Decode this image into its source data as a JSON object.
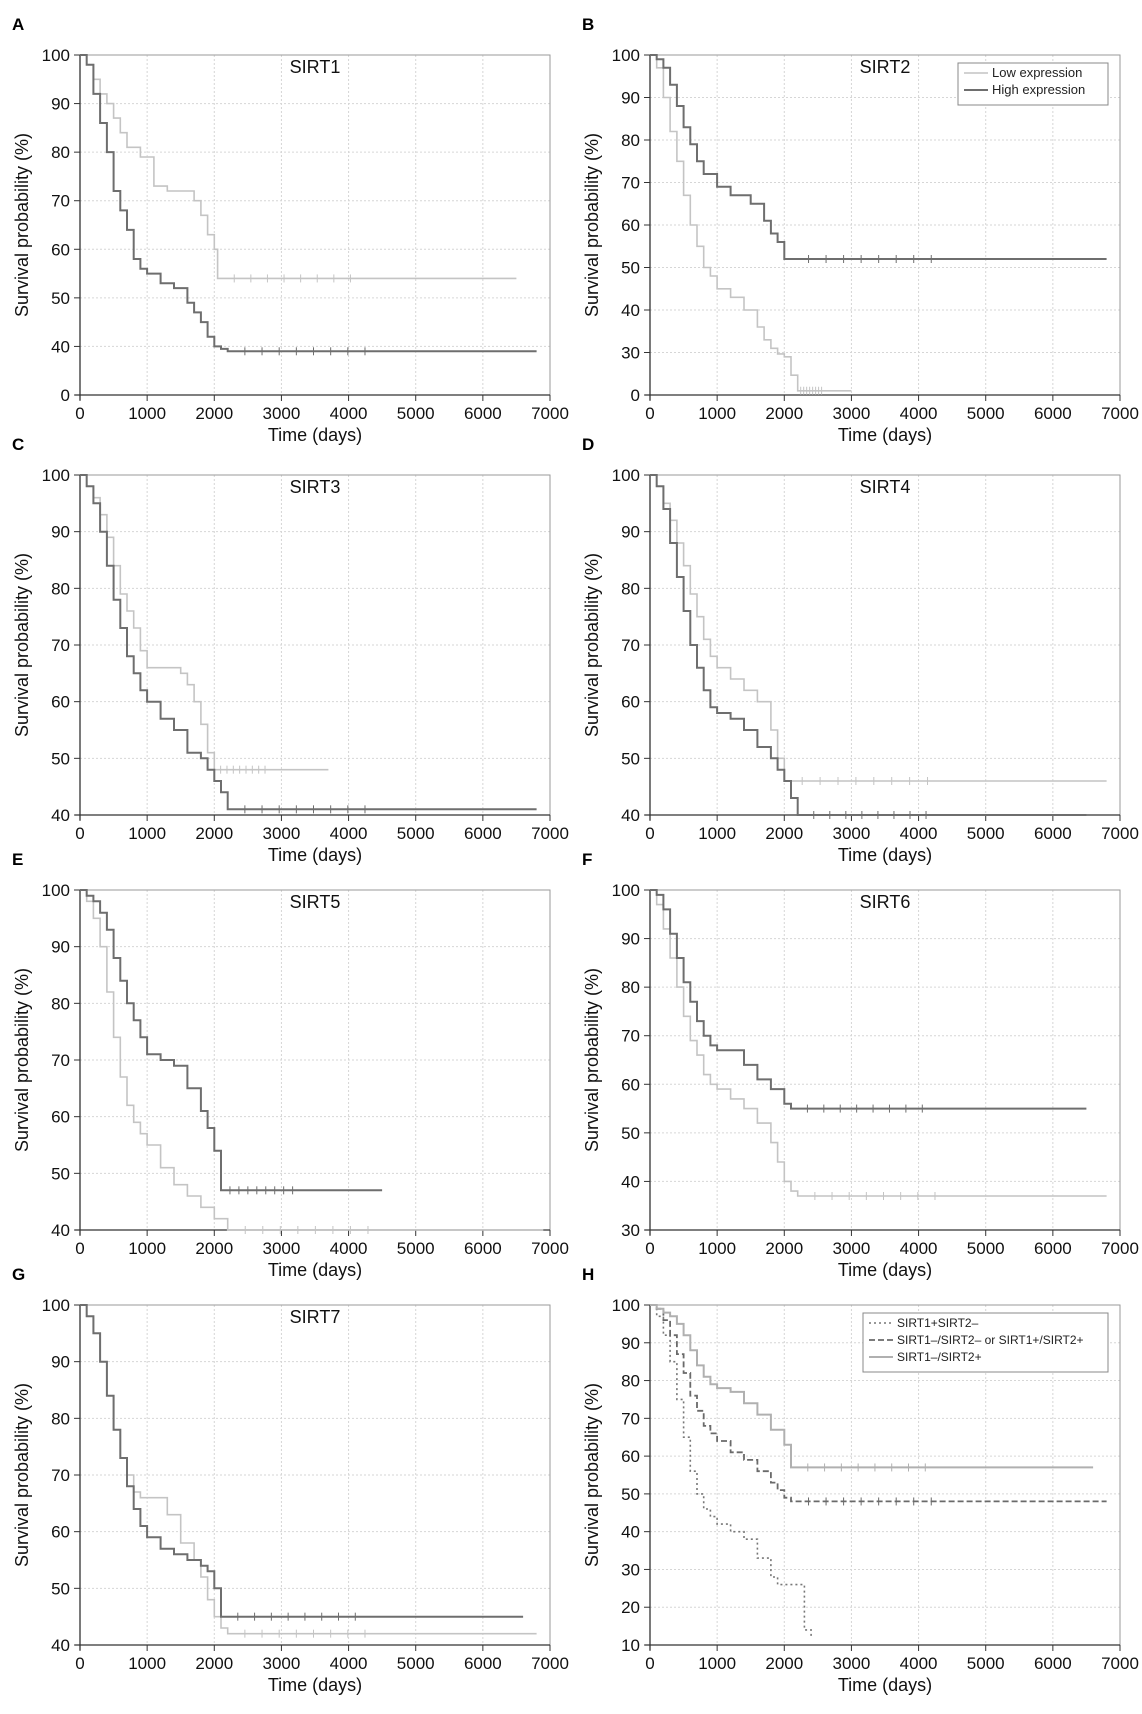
{
  "chart_data": [
    {
      "panel": "A",
      "type": "line",
      "title": "SIRT1",
      "xlabel": "Time (days)",
      "ylabel": "Survival probability (%)",
      "xticks": [
        0,
        1000,
        2000,
        3000,
        4000,
        5000,
        6000,
        7000
      ],
      "yticks": [
        0,
        40,
        50,
        60,
        70,
        80,
        90,
        100
      ],
      "legend": [],
      "series": [
        {
          "style": "low",
          "x": [
            0,
            100,
            200,
            300,
            400,
            500,
            600,
            700,
            900,
            1100,
            1300,
            1500,
            1700,
            1800,
            1900,
            2000,
            2050,
            6500
          ],
          "y": [
            100,
            98,
            95,
            92,
            90,
            87,
            84,
            81,
            79,
            73,
            72,
            72,
            70,
            67,
            63,
            60,
            54,
            54
          ]
        },
        {
          "style": "high",
          "x": [
            0,
            100,
            200,
            300,
            400,
            500,
            600,
            700,
            800,
            900,
            1000,
            1200,
            1400,
            1600,
            1700,
            1800,
            1900,
            2000,
            2100,
            2200,
            6800
          ],
          "y": [
            100,
            98,
            92,
            86,
            80,
            72,
            68,
            64,
            58,
            56,
            55,
            53,
            52,
            49,
            47,
            45,
            42,
            40,
            38,
            36,
            36
          ]
        }
      ]
    },
    {
      "panel": "B",
      "type": "line",
      "title": "SIRT2",
      "xlabel": "Time (days)",
      "ylabel": "Survival probability (%)",
      "xticks": [
        0,
        1000,
        2000,
        3000,
        4000,
        5000,
        6000,
        7000
      ],
      "yticks": [
        0,
        30,
        40,
        50,
        60,
        70,
        80,
        90,
        100
      ],
      "legend": [
        "Low expression",
        "High expression"
      ],
      "series": [
        {
          "style": "low",
          "x": [
            0,
            100,
            200,
            300,
            400,
            500,
            600,
            700,
            800,
            900,
            1000,
            1200,
            1400,
            1600,
            1700,
            1800,
            1900,
            2000,
            2100,
            2200,
            3000
          ],
          "y": [
            100,
            97,
            90,
            82,
            75,
            67,
            60,
            55,
            50,
            48,
            45,
            43,
            40,
            36,
            33,
            31,
            29,
            27,
            14,
            3,
            3
          ]
        },
        {
          "style": "high",
          "x": [
            0,
            100,
            200,
            300,
            400,
            500,
            600,
            700,
            800,
            1000,
            1200,
            1500,
            1700,
            1800,
            1900,
            2000,
            2100,
            6800
          ],
          "y": [
            100,
            99,
            97,
            93,
            88,
            83,
            79,
            75,
            72,
            69,
            67,
            65,
            61,
            58,
            56,
            52,
            52,
            52
          ]
        }
      ]
    },
    {
      "panel": "C",
      "type": "line",
      "title": "SIRT3",
      "xlabel": "Time (days)",
      "ylabel": "Survival probability (%)",
      "xticks": [
        0,
        1000,
        2000,
        3000,
        4000,
        5000,
        6000,
        7000
      ],
      "yticks": [
        40,
        50,
        60,
        70,
        80,
        90,
        100
      ],
      "legend": [],
      "series": [
        {
          "style": "low",
          "x": [
            0,
            100,
            200,
            300,
            400,
            500,
            600,
            700,
            800,
            900,
            1000,
            1400,
            1500,
            1600,
            1700,
            1800,
            1900,
            2000,
            3700
          ],
          "y": [
            100,
            98,
            96,
            93,
            89,
            84,
            79,
            76,
            73,
            69,
            66,
            66,
            65,
            63,
            60,
            56,
            51,
            48,
            48
          ]
        },
        {
          "style": "high",
          "x": [
            0,
            100,
            200,
            300,
            400,
            500,
            600,
            700,
            800,
            900,
            1000,
            1200,
            1400,
            1600,
            1800,
            1900,
            2000,
            2100,
            2200,
            6800
          ],
          "y": [
            100,
            98,
            95,
            90,
            84,
            78,
            73,
            68,
            65,
            62,
            60,
            57,
            55,
            51,
            50,
            48,
            46,
            44,
            41,
            41
          ]
        }
      ]
    },
    {
      "panel": "D",
      "type": "line",
      "title": "SIRT4",
      "xlabel": "Time (days)",
      "ylabel": "Survival probability (%)",
      "xticks": [
        0,
        1000,
        2000,
        3000,
        4000,
        5000,
        6000,
        7000
      ],
      "yticks": [
        40,
        50,
        60,
        70,
        80,
        90,
        100
      ],
      "legend": [],
      "series": [
        {
          "style": "low",
          "x": [
            0,
            100,
            200,
            300,
            400,
            500,
            600,
            700,
            800,
            900,
            1000,
            1200,
            1400,
            1600,
            1800,
            1900,
            2000,
            6800
          ],
          "y": [
            100,
            98,
            95,
            92,
            88,
            84,
            79,
            75,
            71,
            68,
            66,
            64,
            62,
            60,
            55,
            50,
            46,
            46
          ]
        },
        {
          "style": "high",
          "x": [
            0,
            100,
            200,
            300,
            400,
            500,
            600,
            700,
            800,
            900,
            1000,
            1200,
            1400,
            1600,
            1800,
            1900,
            2000,
            2100,
            2200,
            6500
          ],
          "y": [
            100,
            98,
            94,
            88,
            82,
            76,
            70,
            66,
            62,
            59,
            58,
            57,
            55,
            52,
            50,
            48,
            46,
            43,
            40,
            40
          ]
        }
      ]
    },
    {
      "panel": "E",
      "type": "line",
      "title": "SIRT5",
      "xlabel": "Time (days)",
      "ylabel": "Survival probability (%)",
      "xticks": [
        0,
        1000,
        2000,
        3000,
        4000,
        5000,
        6000,
        7000
      ],
      "yticks": [
        40,
        50,
        60,
        70,
        80,
        90,
        100
      ],
      "legend": [],
      "series": [
        {
          "style": "low",
          "x": [
            0,
            100,
            200,
            300,
            400,
            500,
            600,
            700,
            800,
            900,
            1000,
            1200,
            1400,
            1600,
            1800,
            2000,
            2200,
            6900
          ],
          "y": [
            100,
            98,
            95,
            90,
            82,
            74,
            67,
            62,
            59,
            57,
            55,
            51,
            48,
            46,
            44,
            42,
            40,
            40
          ]
        },
        {
          "style": "high",
          "x": [
            0,
            100,
            200,
            300,
            400,
            500,
            600,
            700,
            800,
            900,
            1000,
            1200,
            1400,
            1600,
            1800,
            1900,
            2000,
            2100,
            4500
          ],
          "y": [
            100,
            99,
            98,
            96,
            93,
            88,
            84,
            80,
            77,
            74,
            71,
            70,
            69,
            65,
            61,
            58,
            54,
            47,
            47
          ]
        }
      ]
    },
    {
      "panel": "F",
      "type": "line",
      "title": "SIRT6",
      "xlabel": "Time (days)",
      "ylabel": "Survival probability (%)",
      "xticks": [
        0,
        1000,
        2000,
        3000,
        4000,
        5000,
        6000,
        7000
      ],
      "yticks": [
        30,
        40,
        50,
        60,
        70,
        80,
        90,
        100
      ],
      "legend": [],
      "series": [
        {
          "style": "low",
          "x": [
            0,
            100,
            200,
            300,
            400,
            500,
            600,
            700,
            800,
            900,
            1000,
            1200,
            1400,
            1600,
            1800,
            1900,
            2000,
            2100,
            2200,
            6800
          ],
          "y": [
            100,
            97,
            92,
            86,
            80,
            74,
            69,
            66,
            62,
            60,
            59,
            57,
            55,
            52,
            48,
            44,
            40,
            38,
            37,
            37
          ]
        },
        {
          "style": "high",
          "x": [
            0,
            100,
            200,
            300,
            400,
            500,
            600,
            700,
            800,
            900,
            1000,
            1200,
            1400,
            1600,
            1800,
            2000,
            2100,
            6500
          ],
          "y": [
            100,
            99,
            96,
            91,
            86,
            81,
            77,
            73,
            70,
            68,
            67,
            67,
            64,
            61,
            59,
            56,
            55,
            55
          ]
        }
      ]
    },
    {
      "panel": "G",
      "type": "line",
      "title": "SIRT7",
      "xlabel": "Time (days)",
      "ylabel": "Survival probability (%)",
      "xticks": [
        0,
        1000,
        2000,
        3000,
        4000,
        5000,
        6000,
        7000
      ],
      "yticks": [
        40,
        50,
        60,
        70,
        80,
        90,
        100
      ],
      "legend": [],
      "series": [
        {
          "style": "low",
          "x": [
            0,
            100,
            200,
            300,
            400,
            500,
            600,
            700,
            800,
            900,
            1000,
            1300,
            1500,
            1700,
            1800,
            1900,
            2000,
            2100,
            2200,
            6800
          ],
          "y": [
            100,
            98,
            95,
            90,
            84,
            78,
            73,
            70,
            67,
            66,
            66,
            63,
            58,
            55,
            52,
            48,
            45,
            43,
            42,
            42
          ]
        },
        {
          "style": "high",
          "x": [
            0,
            100,
            200,
            300,
            400,
            500,
            600,
            700,
            800,
            900,
            1000,
            1200,
            1400,
            1600,
            1800,
            1900,
            2000,
            2100,
            6600
          ],
          "y": [
            100,
            98,
            95,
            90,
            84,
            78,
            73,
            68,
            64,
            61,
            59,
            57,
            56,
            55,
            54,
            53,
            50,
            45,
            45
          ]
        }
      ]
    },
    {
      "panel": "H",
      "type": "line",
      "title": "",
      "xlabel": "Time (days)",
      "ylabel": "Survival probability (%)",
      "xticks": [
        0,
        1000,
        2000,
        3000,
        4000,
        5000,
        6000,
        7000
      ],
      "yticks": [
        10,
        20,
        30,
        40,
        50,
        60,
        70,
        80,
        90,
        100
      ],
      "legend": [
        "SIRT1+SIRT2–",
        "SIRT1–/SIRT2– or SIRT1+/SIRT2+",
        "SIRT1–/SIRT2+"
      ],
      "series": [
        {
          "style": "dotted",
          "x": [
            0,
            100,
            200,
            300,
            400,
            500,
            600,
            700,
            800,
            900,
            1000,
            1200,
            1400,
            1600,
            1800,
            1900,
            2000,
            2100,
            2200,
            2300,
            2400
          ],
          "y": [
            100,
            97,
            92,
            85,
            75,
            65,
            56,
            50,
            46,
            44,
            42,
            40,
            38,
            33,
            28,
            26,
            26,
            26,
            26,
            14,
            12
          ]
        },
        {
          "style": "dashed",
          "x": [
            0,
            100,
            200,
            300,
            400,
            500,
            600,
            700,
            800,
            900,
            1000,
            1200,
            1400,
            1600,
            1800,
            1900,
            2000,
            2100,
            6800
          ],
          "y": [
            100,
            99,
            96,
            92,
            87,
            82,
            76,
            72,
            68,
            66,
            64,
            61,
            59,
            56,
            53,
            51,
            49,
            48,
            48
          ]
        },
        {
          "style": "solid",
          "x": [
            0,
            100,
            200,
            300,
            400,
            500,
            600,
            700,
            800,
            900,
            1000,
            1200,
            1400,
            1600,
            1800,
            2000,
            2100,
            6600
          ],
          "y": [
            100,
            99,
            98,
            97,
            95,
            92,
            88,
            84,
            81,
            79,
            78,
            77,
            74,
            71,
            67,
            63,
            57,
            57
          ]
        }
      ]
    }
  ]
}
